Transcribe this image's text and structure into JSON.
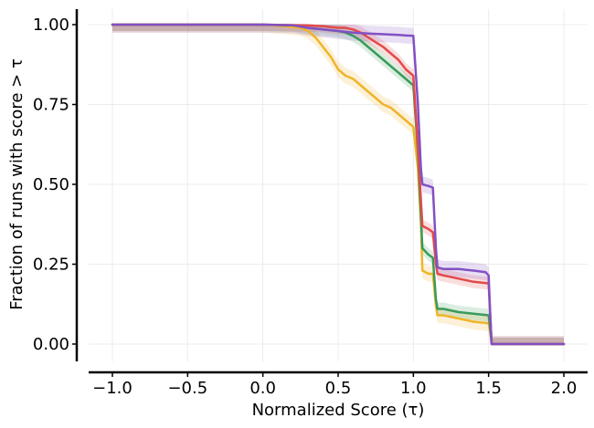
{
  "chart_data": {
    "type": "line",
    "title": "",
    "xlabel": "Normalized Score (τ)",
    "ylabel": "Fraction of runs with score > τ",
    "xlim": [
      -1.1,
      2.15
    ],
    "ylim": [
      -0.06,
      1.05
    ],
    "grid": true,
    "legend": "none",
    "x_ticks": [
      -1.0,
      -0.5,
      0.0,
      0.5,
      1.0,
      1.5,
      2.0
    ],
    "x_tick_labels": [
      "−1.0",
      "−0.5",
      "0.0",
      "0.5",
      "1.0",
      "1.5",
      "2.0"
    ],
    "y_ticks": [
      0.0,
      0.25,
      0.5,
      0.75,
      1.0
    ],
    "y_tick_labels": [
      "0.00",
      "0.25",
      "0.50",
      "0.75",
      "1.00"
    ],
    "series": [
      {
        "name": "orange",
        "color": "#f0b429",
        "band": 0.025,
        "x": [
          -1.0,
          0.0,
          0.15,
          0.25,
          0.3,
          0.35,
          0.4,
          0.45,
          0.5,
          0.55,
          0.6,
          0.65,
          0.7,
          0.75,
          0.8,
          0.85,
          0.9,
          0.95,
          1.0,
          1.03,
          1.05,
          1.06,
          1.1,
          1.13,
          1.15,
          1.16,
          1.2,
          1.3,
          1.4,
          1.5,
          1.51,
          1.52,
          2.0
        ],
        "y": [
          1.0,
          1.0,
          0.995,
          0.99,
          0.98,
          0.96,
          0.93,
          0.9,
          0.86,
          0.84,
          0.83,
          0.81,
          0.79,
          0.77,
          0.75,
          0.74,
          0.72,
          0.7,
          0.68,
          0.55,
          0.38,
          0.23,
          0.22,
          0.22,
          0.12,
          0.09,
          0.09,
          0.08,
          0.07,
          0.065,
          0.04,
          0.0,
          0.0
        ]
      },
      {
        "name": "green",
        "color": "#3a9a5b",
        "band": 0.02,
        "x": [
          -1.0,
          0.0,
          0.2,
          0.3,
          0.4,
          0.5,
          0.55,
          0.6,
          0.65,
          0.7,
          0.75,
          0.8,
          0.85,
          0.9,
          0.95,
          1.0,
          1.03,
          1.05,
          1.06,
          1.1,
          1.13,
          1.15,
          1.16,
          1.2,
          1.3,
          1.4,
          1.5,
          1.51,
          1.52,
          2.0
        ],
        "y": [
          1.0,
          1.0,
          0.998,
          0.99,
          0.985,
          0.98,
          0.975,
          0.965,
          0.95,
          0.93,
          0.91,
          0.89,
          0.87,
          0.85,
          0.83,
          0.81,
          0.6,
          0.4,
          0.3,
          0.28,
          0.27,
          0.14,
          0.11,
          0.11,
          0.1,
          0.095,
          0.09,
          0.05,
          0.0,
          0.0
        ]
      },
      {
        "name": "red",
        "color": "#e24a4a",
        "band": 0.02,
        "x": [
          -1.0,
          0.0,
          0.3,
          0.4,
          0.5,
          0.55,
          0.6,
          0.65,
          0.7,
          0.75,
          0.8,
          0.85,
          0.9,
          0.95,
          1.0,
          1.03,
          1.05,
          1.06,
          1.1,
          1.13,
          1.15,
          1.16,
          1.2,
          1.3,
          1.4,
          1.5,
          1.51,
          1.52,
          2.0
        ],
        "y": [
          1.0,
          1.0,
          0.998,
          0.995,
          0.99,
          0.99,
          0.985,
          0.975,
          0.96,
          0.945,
          0.93,
          0.91,
          0.89,
          0.86,
          0.84,
          0.62,
          0.45,
          0.37,
          0.36,
          0.35,
          0.25,
          0.22,
          0.215,
          0.205,
          0.195,
          0.19,
          0.1,
          0.0,
          0.0
        ]
      },
      {
        "name": "purple",
        "color": "#8250c4",
        "band": 0.025,
        "x": [
          -1.0,
          0.0,
          0.2,
          0.3,
          0.4,
          0.5,
          0.6,
          0.7,
          0.8,
          0.9,
          0.95,
          1.0,
          1.03,
          1.05,
          1.06,
          1.1,
          1.13,
          1.15,
          1.16,
          1.2,
          1.3,
          1.4,
          1.48,
          1.5,
          1.51,
          1.52,
          2.0
        ],
        "y": [
          1.0,
          1.0,
          0.998,
          0.99,
          0.985,
          0.98,
          0.975,
          0.972,
          0.97,
          0.968,
          0.966,
          0.965,
          0.75,
          0.55,
          0.5,
          0.495,
          0.49,
          0.3,
          0.24,
          0.235,
          0.235,
          0.23,
          0.225,
          0.215,
          0.1,
          0.0,
          0.0
        ]
      }
    ]
  }
}
